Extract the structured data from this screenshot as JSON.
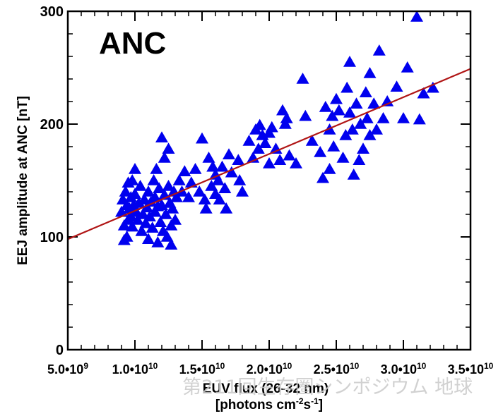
{
  "chart_data": {
    "type": "scatter",
    "panel_label": "ANC",
    "xlabel_line1": "EUV flux (26-32 nm)",
    "xlabel_line2": "[photons cm",
    "xlabel_sup1": "-2",
    "xlabel_mid": "s",
    "xlabel_sup2": "-1",
    "xlabel_end": "]",
    "ylabel": "EEJ amplitude at ANC [nT]",
    "xlim": [
      5000000000.0,
      35000000000.0
    ],
    "ylim": [
      0,
      300
    ],
    "x_ticks": [
      {
        "value": 5000000000.0,
        "mantissa": "5.0•10",
        "exp": "9"
      },
      {
        "value": 10000000000.0,
        "mantissa": "1.0•10",
        "exp": "10"
      },
      {
        "value": 15000000000.0,
        "mantissa": "1.5•10",
        "exp": "10"
      },
      {
        "value": 20000000000.0,
        "mantissa": "2.0•10",
        "exp": "10"
      },
      {
        "value": 25000000000.0,
        "mantissa": "2.5•10",
        "exp": "10"
      },
      {
        "value": 30000000000.0,
        "mantissa": "3.0•10",
        "exp": "10"
      },
      {
        "value": 35000000000.0,
        "mantissa": "3.5•10",
        "exp": "10"
      }
    ],
    "y_ticks": [
      {
        "value": 0,
        "label": "0"
      },
      {
        "value": 100,
        "label": "100"
      },
      {
        "value": 200,
        "label": "200"
      },
      {
        "value": 300,
        "label": "300"
      }
    ],
    "marker": "triangle",
    "marker_color": "#0000ee",
    "fit_line_color": "#b01515",
    "fit_line": {
      "x": [
        5000000000.0,
        35000000000.0
      ],
      "y": [
        98,
        249
      ]
    },
    "points": [
      [
        9000000000.0,
        122
      ],
      [
        9100000000.0,
        133
      ],
      [
        9200000000.0,
        110
      ],
      [
        9200000000.0,
        97
      ],
      [
        9300000000.0,
        140
      ],
      [
        9400000000.0,
        128
      ],
      [
        9400000000.0,
        100
      ],
      [
        9500000000.0,
        115
      ],
      [
        9500000000.0,
        148
      ],
      [
        9600000000.0,
        125
      ],
      [
        9700000000.0,
        135
      ],
      [
        9700000000.0,
        118
      ],
      [
        9800000000.0,
        109
      ],
      [
        9800000000.0,
        150
      ],
      [
        9900000000.0,
        128
      ],
      [
        10000000000.0,
        160
      ],
      [
        10000000000.0,
        138
      ],
      [
        10100000000.0,
        122
      ],
      [
        10200000000.0,
        115
      ],
      [
        10300000000.0,
        130
      ],
      [
        10400000000.0,
        145
      ],
      [
        10500000000.0,
        105
      ],
      [
        10600000000.0,
        120
      ],
      [
        10700000000.0,
        133
      ],
      [
        10800000000.0,
        112
      ],
      [
        10900000000.0,
        126
      ],
      [
        11000000000.0,
        140
      ],
      [
        11000000000.0,
        98
      ],
      [
        11100000000.0,
        118
      ],
      [
        11200000000.0,
        131
      ],
      [
        11300000000.0,
        108
      ],
      [
        11400000000.0,
        150
      ],
      [
        11500000000.0,
        135
      ],
      [
        11500000000.0,
        122
      ],
      [
        11600000000.0,
        160
      ],
      [
        11700000000.0,
        95
      ],
      [
        11700000000.0,
        127
      ],
      [
        11800000000.0,
        143
      ],
      [
        11900000000.0,
        113
      ],
      [
        12000000000.0,
        188
      ],
      [
        12000000000.0,
        128
      ],
      [
        12100000000.0,
        105
      ],
      [
        12200000000.0,
        137
      ],
      [
        12200000000.0,
        170
      ],
      [
        12300000000.0,
        120
      ],
      [
        12400000000.0,
        100
      ],
      [
        12500000000.0,
        145
      ],
      [
        12500000000.0,
        178
      ],
      [
        12600000000.0,
        130
      ],
      [
        12700000000.0,
        110
      ],
      [
        12700000000.0,
        93
      ],
      [
        12800000000.0,
        125
      ],
      [
        12900000000.0,
        140
      ],
      [
        13000000000.0,
        115
      ],
      [
        13100000000.0,
        135
      ],
      [
        13300000000.0,
        150
      ],
      [
        13500000000.0,
        140
      ],
      [
        13700000000.0,
        158
      ],
      [
        14000000000.0,
        135
      ],
      [
        14200000000.0,
        148
      ],
      [
        14500000000.0,
        160
      ],
      [
        14800000000.0,
        140
      ],
      [
        15000000000.0,
        187
      ],
      [
        15200000000.0,
        133
      ],
      [
        15300000000.0,
        125
      ],
      [
        15500000000.0,
        170
      ],
      [
        15700000000.0,
        145
      ],
      [
        15800000000.0,
        162
      ],
      [
        16000000000.0,
        155
      ],
      [
        16000000000.0,
        138
      ],
      [
        16200000000.0,
        150
      ],
      [
        16300000000.0,
        133
      ],
      [
        16500000000.0,
        162
      ],
      [
        16700000000.0,
        143
      ],
      [
        16800000000.0,
        125
      ],
      [
        17000000000.0,
        173
      ],
      [
        17200000000.0,
        157
      ],
      [
        17700000000.0,
        168
      ],
      [
        17800000000.0,
        150
      ],
      [
        18000000000.0,
        140
      ],
      [
        18500000000.0,
        185
      ],
      [
        18800000000.0,
        170
      ],
      [
        19000000000.0,
        195
      ],
      [
        19200000000.0,
        178
      ],
      [
        19300000000.0,
        199
      ],
      [
        19500000000.0,
        190
      ],
      [
        19700000000.0,
        183
      ],
      [
        20000000000.0,
        165
      ],
      [
        20000000000.0,
        192
      ],
      [
        20200000000.0,
        197
      ],
      [
        20500000000.0,
        178
      ],
      [
        20800000000.0,
        168
      ],
      [
        21000000000.0,
        212
      ],
      [
        21200000000.0,
        200
      ],
      [
        21300000000.0,
        205
      ],
      [
        21500000000.0,
        172
      ],
      [
        22000000000.0,
        165
      ],
      [
        22500000000.0,
        240
      ],
      [
        22700000000.0,
        207
      ],
      [
        23200000000.0,
        185
      ],
      [
        23800000000.0,
        175
      ],
      [
        24000000000.0,
        152
      ],
      [
        24200000000.0,
        215
      ],
      [
        24500000000.0,
        195
      ],
      [
        24500000000.0,
        160
      ],
      [
        24700000000.0,
        207
      ],
      [
        24800000000.0,
        180
      ],
      [
        25000000000.0,
        222
      ],
      [
        25200000000.0,
        212
      ],
      [
        25500000000.0,
        170
      ],
      [
        25700000000.0,
        190
      ],
      [
        25800000000.0,
        232
      ],
      [
        26000000000.0,
        255
      ],
      [
        26000000000.0,
        210
      ],
      [
        26200000000.0,
        195
      ],
      [
        26300000000.0,
        155
      ],
      [
        26500000000.0,
        218
      ],
      [
        26700000000.0,
        168
      ],
      [
        26800000000.0,
        200
      ],
      [
        27000000000.0,
        178
      ],
      [
        27200000000.0,
        228
      ],
      [
        27300000000.0,
        205
      ],
      [
        27500000000.0,
        190
      ],
      [
        27500000000.0,
        245
      ],
      [
        27800000000.0,
        218
      ],
      [
        28000000000.0,
        195
      ],
      [
        28200000000.0,
        265
      ],
      [
        28500000000.0,
        205
      ],
      [
        28800000000.0,
        220
      ],
      [
        29500000000.0,
        233
      ],
      [
        30000000000.0,
        205
      ],
      [
        30300000000.0,
        250
      ],
      [
        31000000000.0,
        295
      ],
      [
        31200000000.0,
        204
      ],
      [
        31500000000.0,
        227
      ],
      [
        32200000000.0,
        232
      ]
    ]
  },
  "watermark": "第211回生存圏シンポジウム 地球"
}
